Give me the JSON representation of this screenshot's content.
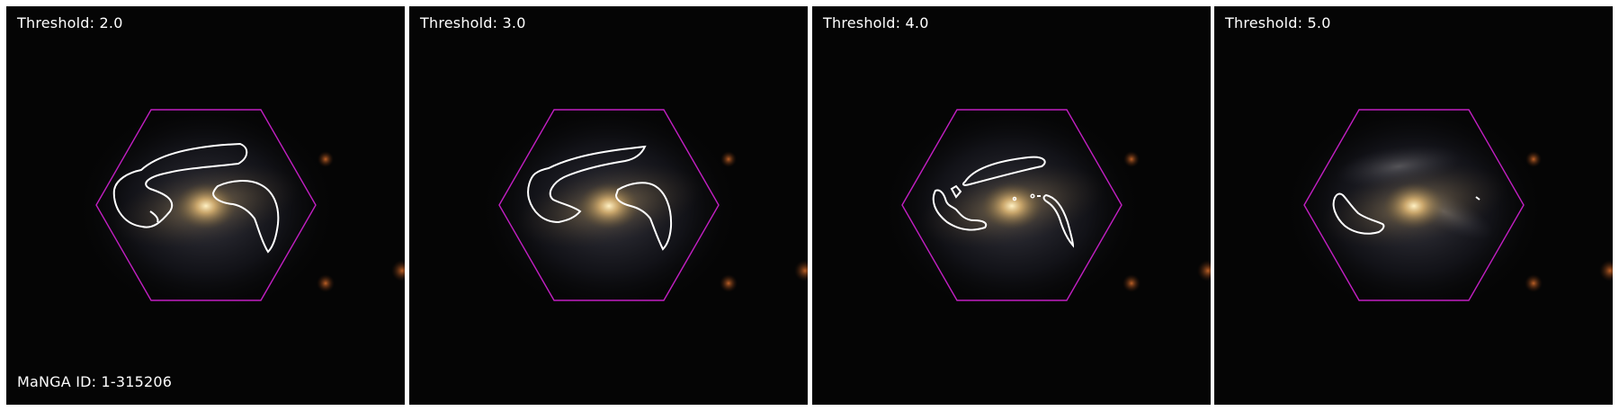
{
  "panels": [
    {
      "title": "Threshold: 2.0"
    },
    {
      "title": "Threshold: 3.0"
    },
    {
      "title": "Threshold: 4.0"
    },
    {
      "title": "Threshold: 5.0"
    }
  ],
  "galaxy_id_label": "MaNGA ID: 1-315206",
  "colors": {
    "hexagon": "#c21fc2",
    "contour": "#ffffff",
    "background": "#050505",
    "galaxy_core": "#f2dca0"
  }
}
